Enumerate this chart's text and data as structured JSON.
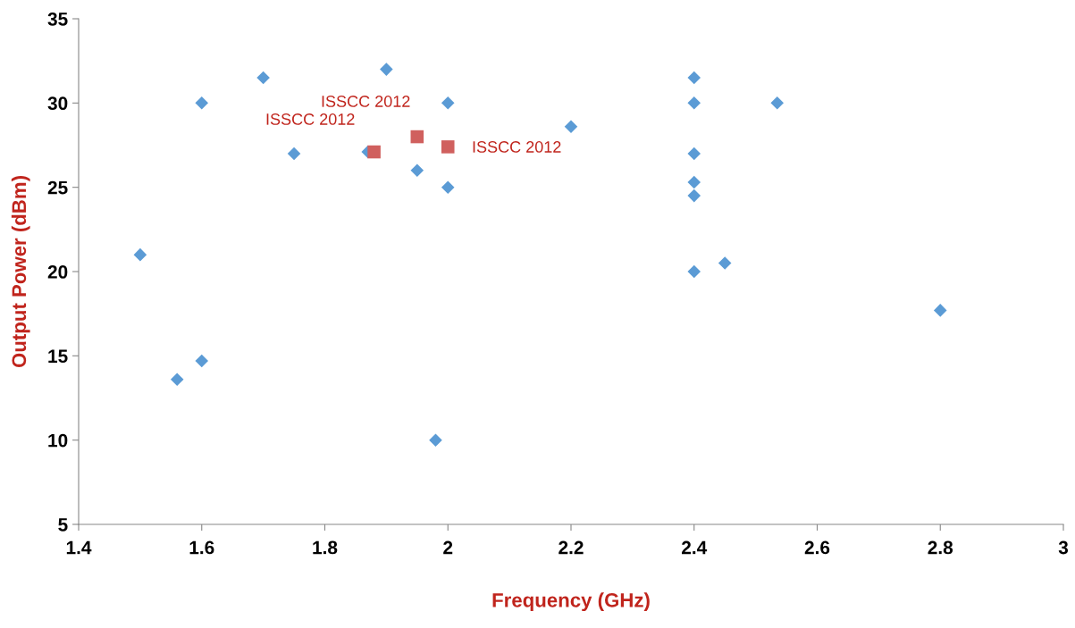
{
  "chart_data": {
    "type": "scatter",
    "xlabel": "Frequency (GHz)",
    "ylabel": "Output Power (dBm)",
    "xlim": [
      1.4,
      3
    ],
    "xticks": [
      {
        "value": 1.4,
        "label": "1.4"
      },
      {
        "value": 1.6,
        "label": "1.6"
      },
      {
        "value": 1.8,
        "label": "1.8"
      },
      {
        "value": 2,
        "label": "2"
      },
      {
        "value": 2.2,
        "label": "2.2"
      },
      {
        "value": 2.4,
        "label": "2.4"
      },
      {
        "value": 2.6,
        "label": "2.6"
      },
      {
        "value": 2.8,
        "label": "2.8"
      },
      {
        "value": 3,
        "label": "3"
      }
    ],
    "ylim": [
      5,
      35
    ],
    "yticks": [
      5,
      10,
      15,
      20,
      25,
      30,
      35
    ],
    "grid": false,
    "legend": false,
    "series": [
      {
        "color": "#5b9bd5",
        "marker": "diamond",
        "x": [
          1.5,
          1.56,
          1.6,
          1.6,
          1.7,
          1.75,
          1.87,
          1.9,
          1.95,
          1.98,
          2.0,
          2.0,
          2.2,
          2.4,
          2.4,
          2.4,
          2.4,
          2.4,
          2.4,
          2.45,
          2.535,
          2.8
        ],
        "values": [
          21,
          13.6,
          14.7,
          30,
          31.5,
          27,
          27.1,
          32,
          26,
          10,
          30,
          25,
          28.6,
          31.5,
          30,
          27,
          25.3,
          24.5,
          20,
          20.5,
          30,
          17.7
        ]
      },
      {
        "color": "#d0605e",
        "marker": "square",
        "x": [
          1.88,
          1.95,
          2.0
        ],
        "values": [
          27.1,
          28,
          27.4
        ]
      }
    ],
    "annotations": [
      "ISSCC 2012",
      "ISSCC 2012",
      "ISSCC 2012"
    ]
  }
}
